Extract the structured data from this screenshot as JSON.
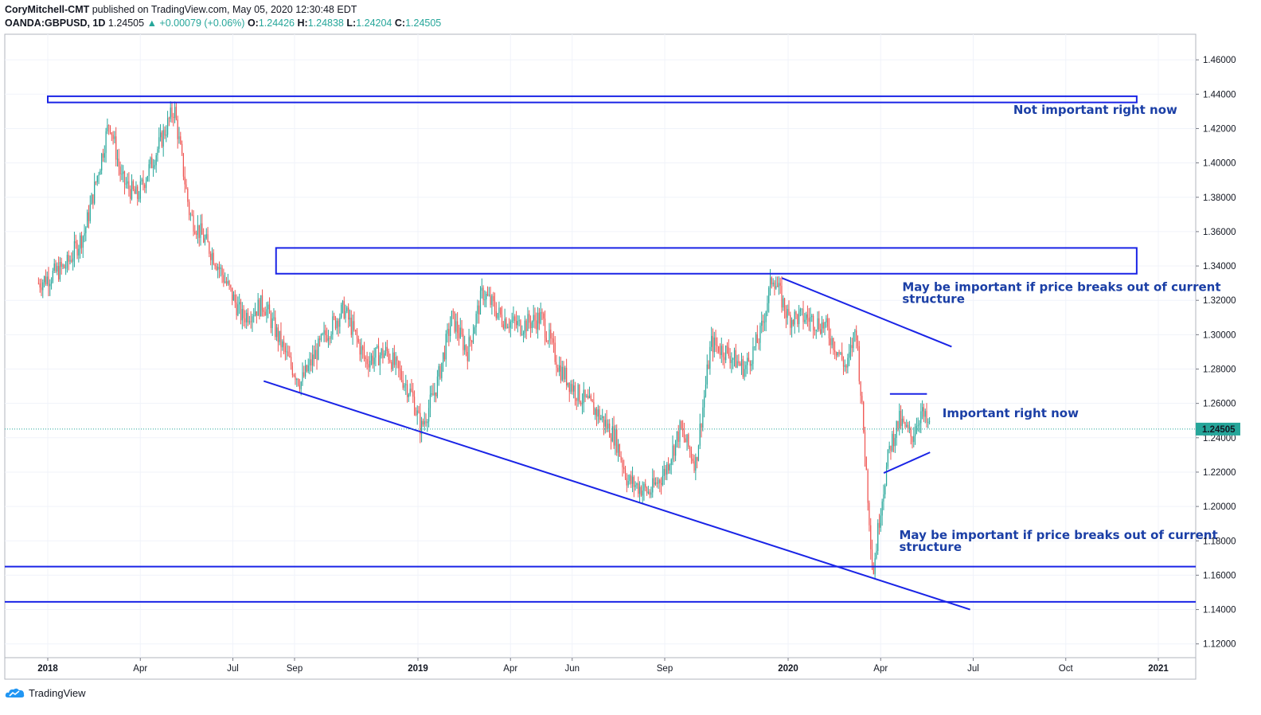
{
  "header": {
    "author": "CoryMitchell-CMT",
    "published": "published on TradingView.com, May 05, 2020 12:30:48 EDT",
    "symbol": "OANDA:GBPUSD, 1D",
    "last": "1.24505",
    "change": "+0.00079 (+0.06%)",
    "open_label": "O:",
    "open": "1.24426",
    "high_label": "H:",
    "high": "1.24838",
    "low_label": "L:",
    "low": "1.24204",
    "close_label": "C:",
    "close": "1.24505"
  },
  "footer": {
    "brand": "TradingView"
  },
  "colors": {
    "up": "#26a69a",
    "down": "#ef5350",
    "drawing": "#1a24e6",
    "annotation": "#1b3fa6",
    "price_badge": "#26a69a"
  },
  "chart_data": {
    "type": "candlestick",
    "symbol": "OANDA:GBPUSD",
    "interval": "1D",
    "ylim": [
      1.11,
      1.47
    ],
    "yticks": [
      "1.46000",
      "1.44000",
      "1.42000",
      "1.40000",
      "1.38000",
      "1.36000",
      "1.34000",
      "1.32000",
      "1.30000",
      "1.28000",
      "1.26000",
      "1.24000",
      "1.22000",
      "1.20000",
      "1.18000",
      "1.16000",
      "1.14000",
      "1.12000"
    ],
    "xticks": [
      "2018",
      "Apr",
      "Jul",
      "Sep",
      "2019",
      "Apr",
      "Jun",
      "Sep",
      "2020",
      "Apr",
      "Jul",
      "Oct",
      "2021"
    ],
    "last_price": "1.24505",
    "price_path": [
      {
        "m": -0.3,
        "p": 1.33
      },
      {
        "m": 0.6,
        "p": 1.34
      },
      {
        "m": 1.2,
        "p": 1.36
      },
      {
        "m": 1.7,
        "p": 1.4
      },
      {
        "m": 2.0,
        "p": 1.425
      },
      {
        "m": 2.4,
        "p": 1.39
      },
      {
        "m": 2.9,
        "p": 1.38
      },
      {
        "m": 3.6,
        "p": 1.41
      },
      {
        "m": 4.1,
        "p": 1.432
      },
      {
        "m": 4.6,
        "p": 1.37
      },
      {
        "m": 5.4,
        "p": 1.345
      },
      {
        "m": 6.3,
        "p": 1.31
      },
      {
        "m": 7.0,
        "p": 1.318
      },
      {
        "m": 7.8,
        "p": 1.285
      },
      {
        "m": 8.2,
        "p": 1.272
      },
      {
        "m": 9.0,
        "p": 1.3
      },
      {
        "m": 9.6,
        "p": 1.315
      },
      {
        "m": 10.3,
        "p": 1.285
      },
      {
        "m": 11.0,
        "p": 1.29
      },
      {
        "m": 11.8,
        "p": 1.265
      },
      {
        "m": 12.1,
        "p": 1.245
      },
      {
        "m": 12.6,
        "p": 1.27
      },
      {
        "m": 13.1,
        "p": 1.31
      },
      {
        "m": 13.6,
        "p": 1.29
      },
      {
        "m": 14.1,
        "p": 1.325
      },
      {
        "m": 14.7,
        "p": 1.31
      },
      {
        "m": 15.3,
        "p": 1.305
      },
      {
        "m": 16.0,
        "p": 1.31
      },
      {
        "m": 16.6,
        "p": 1.28
      },
      {
        "m": 17.2,
        "p": 1.265
      },
      {
        "m": 17.8,
        "p": 1.255
      },
      {
        "m": 18.4,
        "p": 1.24
      },
      {
        "m": 18.8,
        "p": 1.215
      },
      {
        "m": 19.5,
        "p": 1.208
      },
      {
        "m": 20.0,
        "p": 1.22
      },
      {
        "m": 20.5,
        "p": 1.245
      },
      {
        "m": 21.0,
        "p": 1.225
      },
      {
        "m": 21.5,
        "p": 1.295
      },
      {
        "m": 22.0,
        "p": 1.29
      },
      {
        "m": 22.6,
        "p": 1.28
      },
      {
        "m": 23.1,
        "p": 1.3
      },
      {
        "m": 23.5,
        "p": 1.335
      },
      {
        "m": 24.0,
        "p": 1.31
      },
      {
        "m": 24.6,
        "p": 1.31
      },
      {
        "m": 25.2,
        "p": 1.305
      },
      {
        "m": 25.9,
        "p": 1.28
      },
      {
        "m": 26.2,
        "p": 1.305
      },
      {
        "m": 26.5,
        "p": 1.23
      },
      {
        "m": 26.75,
        "p": 1.16
      },
      {
        "m": 27.0,
        "p": 1.2
      },
      {
        "m": 27.3,
        "p": 1.235
      },
      {
        "m": 27.6,
        "p": 1.25
      },
      {
        "m": 28.0,
        "p": 1.24
      },
      {
        "m": 28.3,
        "p": 1.255
      },
      {
        "m": 28.6,
        "p": 1.245
      }
    ],
    "drawings": [
      {
        "kind": "rectangle",
        "from_m": 0.0,
        "to_m": 35.3,
        "p_top": 1.4388,
        "p_bottom": 1.4352
      },
      {
        "kind": "rectangle",
        "from_m": 7.4,
        "to_m": 35.3,
        "p_top": 1.3505,
        "p_bottom": 1.3355
      },
      {
        "kind": "hline",
        "p": 1.165
      },
      {
        "kind": "hline",
        "p": 1.1445
      },
      {
        "kind": "trend",
        "m1": 7.0,
        "p1": 1.273,
        "m2": 29.9,
        "p2": 1.14
      },
      {
        "kind": "trend",
        "m1": 23.8,
        "p1": 1.333,
        "m2": 29.3,
        "p2": 1.293
      },
      {
        "kind": "trend",
        "m1": 27.3,
        "p1": 1.2655,
        "m2": 28.5,
        "p2": 1.2655
      },
      {
        "kind": "trend",
        "m1": 27.1,
        "p1": 1.2195,
        "m2": 28.6,
        "p2": 1.2315
      }
    ],
    "annotations": [
      {
        "text": "Not important right now",
        "m": 31.3,
        "p": 1.4285
      },
      {
        "text": "May be important if price breaks out of current",
        "m": 27.7,
        "p": 1.3255
      },
      {
        "text": "structure",
        "m": 27.7,
        "p": 1.3185
      },
      {
        "text": "Important right now",
        "m": 29.0,
        "p": 1.252
      },
      {
        "text": "May be important if price breaks out of current",
        "m": 27.6,
        "p": 1.181
      },
      {
        "text": "structure",
        "m": 27.6,
        "p": 1.174
      }
    ]
  }
}
